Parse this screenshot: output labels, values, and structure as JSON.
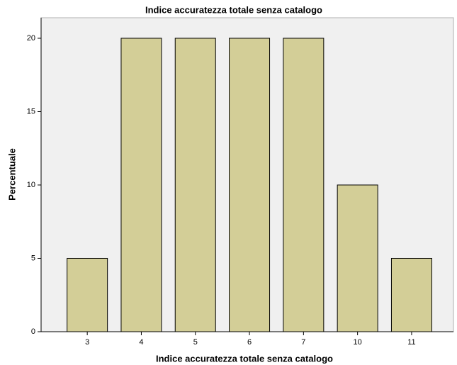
{
  "chart_data": {
    "type": "bar",
    "title": "Indice accuratezza totale senza catalogo",
    "x_label": "Indice accuratezza totale senza catalogo",
    "y_label": "Percentuale",
    "categories": [
      "3",
      "4",
      "5",
      "6",
      "7",
      "10",
      "11"
    ],
    "values": [
      5,
      20,
      20,
      20,
      20,
      10,
      5
    ],
    "color": "#d3ce97",
    "ylim": [
      0,
      21.4
    ],
    "yticks": [
      0,
      5,
      10,
      15,
      20
    ],
    "grid": false
  }
}
